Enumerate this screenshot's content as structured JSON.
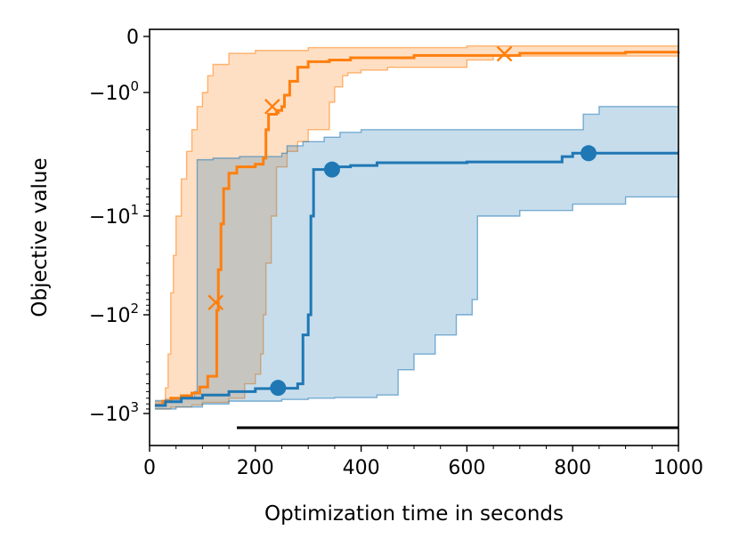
{
  "chart_data": {
    "type": "line",
    "xlabel": "Optimization time in seconds",
    "ylabel": "Objective value",
    "xlim": [
      0,
      1000
    ],
    "y_scale": "symlog",
    "y_ticks": [
      {
        "value": 0,
        "label": "0"
      },
      {
        "value": -1,
        "label": "−10",
        "exp": "0"
      },
      {
        "value": -10,
        "label": "−10",
        "exp": "1"
      },
      {
        "value": -100,
        "label": "−10",
        "exp": "2"
      },
      {
        "value": -1000,
        "label": "−10",
        "exp": "3"
      }
    ],
    "x_ticks": [
      {
        "value": 0,
        "label": "0"
      },
      {
        "value": 200,
        "label": "200"
      },
      {
        "value": 400,
        "label": "400"
      },
      {
        "value": 600,
        "label": "600"
      },
      {
        "value": 800,
        "label": "800"
      },
      {
        "value": 1000,
        "label": "1000"
      }
    ],
    "colors": {
      "orange": "#ff7f0e",
      "blue": "#1f77b4",
      "reference": "#000000"
    },
    "series": [
      {
        "color": "orange",
        "marker": "x",
        "median": [
          [
            10,
            -820
          ],
          [
            25,
            -750
          ],
          [
            40,
            -700
          ],
          [
            60,
            -660
          ],
          [
            80,
            -620
          ],
          [
            95,
            -540
          ],
          [
            110,
            -420
          ],
          [
            125,
            -420
          ],
          [
            127,
            -90
          ],
          [
            130,
            -35
          ],
          [
            135,
            -12
          ],
          [
            140,
            -6
          ],
          [
            150,
            -4.5
          ],
          [
            165,
            -4
          ],
          [
            180,
            -4
          ],
          [
            200,
            -3.8
          ],
          [
            215,
            -3.4
          ],
          [
            220,
            -2
          ],
          [
            225,
            -1.5
          ],
          [
            240,
            -1.4
          ],
          [
            250,
            -1.3
          ],
          [
            255,
            -1.05
          ],
          [
            265,
            -0.8
          ],
          [
            280,
            -0.55
          ],
          [
            300,
            -0.45
          ],
          [
            340,
            -0.42
          ],
          [
            370,
            -0.42
          ],
          [
            380,
            -0.38
          ],
          [
            500,
            -0.34
          ],
          [
            700,
            -0.3
          ],
          [
            900,
            -0.28
          ],
          [
            1000,
            -0.27
          ]
        ],
        "upper": [
          [
            10,
            -760
          ],
          [
            25,
            -740
          ],
          [
            30,
            -550
          ],
          [
            35,
            -250
          ],
          [
            40,
            -60
          ],
          [
            45,
            -25
          ],
          [
            50,
            -10
          ],
          [
            60,
            -5
          ],
          [
            70,
            -3
          ],
          [
            80,
            -2
          ],
          [
            90,
            -1.3
          ],
          [
            100,
            -1
          ],
          [
            110,
            -0.7
          ],
          [
            120,
            -0.5
          ],
          [
            150,
            -0.3
          ],
          [
            200,
            -0.25
          ],
          [
            300,
            -0.2
          ],
          [
            600,
            -0.17
          ],
          [
            1000,
            -0.17
          ]
        ],
        "lower": [
          [
            10,
            -900
          ],
          [
            40,
            -860
          ],
          [
            80,
            -820
          ],
          [
            100,
            -770
          ],
          [
            150,
            -700
          ],
          [
            180,
            -500
          ],
          [
            200,
            -400
          ],
          [
            210,
            -250
          ],
          [
            215,
            -100
          ],
          [
            220,
            -30
          ],
          [
            230,
            -10
          ],
          [
            240,
            -4
          ],
          [
            260,
            -3
          ],
          [
            280,
            -2.5
          ],
          [
            300,
            -2
          ],
          [
            340,
            -1.2
          ],
          [
            350,
            -0.9
          ],
          [
            365,
            -0.7
          ],
          [
            375,
            -0.65
          ],
          [
            400,
            -0.6
          ],
          [
            450,
            -0.55
          ],
          [
            600,
            -0.42
          ],
          [
            650,
            -0.35
          ],
          [
            1000,
            -0.35
          ]
        ],
        "markers": [
          [
            125,
            -75
          ],
          [
            232,
            -1.3
          ],
          [
            671,
            -0.31
          ]
        ]
      },
      {
        "color": "blue",
        "marker": "o",
        "median": [
          [
            10,
            -830
          ],
          [
            30,
            -760
          ],
          [
            60,
            -700
          ],
          [
            100,
            -650
          ],
          [
            150,
            -600
          ],
          [
            200,
            -560
          ],
          [
            230,
            -555
          ],
          [
            280,
            -500
          ],
          [
            290,
            -160
          ],
          [
            300,
            -100
          ],
          [
            305,
            -10
          ],
          [
            310,
            -4.2
          ],
          [
            340,
            -4.2
          ],
          [
            350,
            -4
          ],
          [
            380,
            -3.9
          ],
          [
            430,
            -3.7
          ],
          [
            600,
            -3.65
          ],
          [
            770,
            -3.65
          ],
          [
            780,
            -3.3
          ],
          [
            800,
            -3.1
          ],
          [
            1000,
            -3.1
          ]
        ],
        "upper": [
          [
            10,
            -740
          ],
          [
            30,
            -720
          ],
          [
            60,
            -700
          ],
          [
            85,
            -600
          ],
          [
            90,
            -3.5
          ],
          [
            120,
            -3.4
          ],
          [
            170,
            -3.3
          ],
          [
            220,
            -3.3
          ],
          [
            245,
            -3.3
          ],
          [
            250,
            -3.1
          ],
          [
            260,
            -2.7
          ],
          [
            290,
            -2.5
          ],
          [
            330,
            -2.3
          ],
          [
            360,
            -2.1
          ],
          [
            400,
            -2.0
          ],
          [
            800,
            -2.0
          ],
          [
            820,
            -1.5
          ],
          [
            850,
            -1.3
          ],
          [
            1000,
            -1.3
          ]
        ],
        "lower": [
          [
            10,
            -900
          ],
          [
            50,
            -860
          ],
          [
            100,
            -800
          ],
          [
            150,
            -750
          ],
          [
            250,
            -720
          ],
          [
            300,
            -700
          ],
          [
            350,
            -690
          ],
          [
            400,
            -690
          ],
          [
            430,
            -650
          ],
          [
            470,
            -360
          ],
          [
            500,
            -250
          ],
          [
            540,
            -160
          ],
          [
            580,
            -100
          ],
          [
            610,
            -70
          ],
          [
            620,
            -10
          ],
          [
            700,
            -9
          ],
          [
            800,
            -8
          ],
          [
            900,
            -7
          ],
          [
            1000,
            -6
          ]
        ],
        "markers": [
          [
            243,
            -550
          ],
          [
            345,
            -4.2
          ],
          [
            830,
            -3.1
          ]
        ]
      }
    ],
    "reference_line": {
      "x": [
        165,
        1000
      ],
      "y": -1400
    }
  }
}
